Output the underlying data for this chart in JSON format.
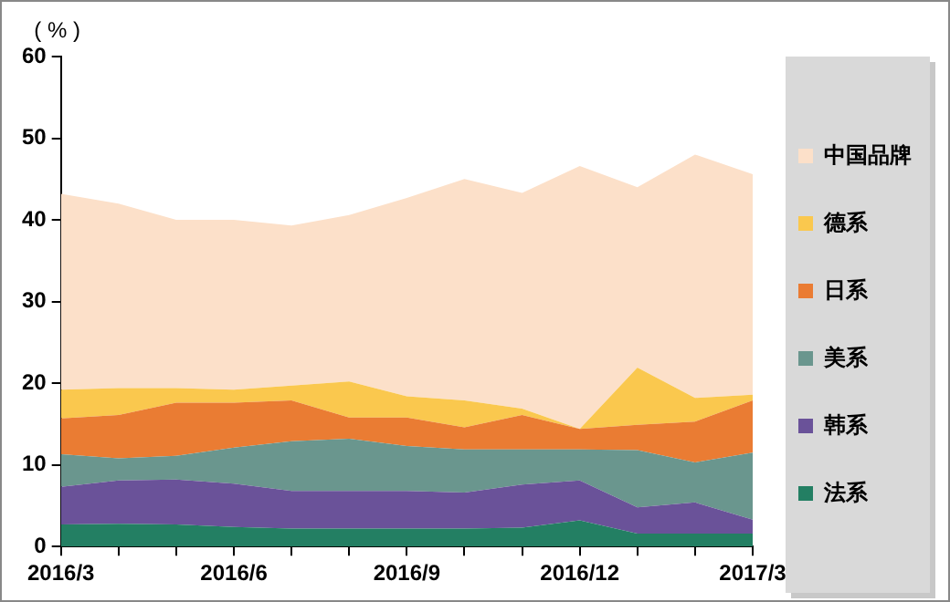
{
  "chart_data": {
    "type": "area",
    "stacked": true,
    "ylabel": "( % )",
    "categories": [
      "2016/3",
      null,
      null,
      "2016/6",
      null,
      null,
      "2016/9",
      null,
      null,
      "2016/12",
      null,
      null,
      "2017/3"
    ],
    "series": [
      {
        "name": "法系",
        "color": "#237f63",
        "values": [
          2.7,
          2.8,
          2.7,
          2.4,
          2.2,
          2.2,
          2.2,
          2.2,
          2.3,
          3.2,
          1.6,
          1.6,
          1.6
        ]
      },
      {
        "name": "韩系",
        "color": "#6a5299",
        "values": [
          4.6,
          5.3,
          5.5,
          5.3,
          4.6,
          4.6,
          4.6,
          4.4,
          5.3,
          4.9,
          3.2,
          3.8,
          1.7
        ]
      },
      {
        "name": "美系",
        "color": "#6a968e",
        "values": [
          4.0,
          2.7,
          2.9,
          4.4,
          6.1,
          6.4,
          5.5,
          5.3,
          4.3,
          3.8,
          7.0,
          4.9,
          8.2
        ]
      },
      {
        "name": "日系",
        "color": "#ea7c33",
        "values": [
          4.4,
          5.3,
          6.5,
          5.5,
          5.0,
          2.6,
          3.5,
          2.7,
          4.2,
          2.5,
          3.1,
          5.0,
          6.4
        ]
      },
      {
        "name": "德系",
        "color": "#fac84e",
        "values": [
          3.5,
          3.3,
          1.8,
          1.6,
          1.8,
          4.4,
          2.6,
          3.3,
          0.8,
          0,
          7.0,
          2.9,
          0.7
        ]
      },
      {
        "name": "中国品牌",
        "color": "#fce0c9",
        "values": [
          24.0,
          22.6,
          20.6,
          20.8,
          19.6,
          20.4,
          24.3,
          27.1,
          26.4,
          32.2,
          22.1,
          29.8,
          27.0
        ]
      }
    ],
    "ylim": [
      0,
      60
    ],
    "yticks": [
      0,
      10,
      20,
      30,
      40,
      50,
      60
    ],
    "grid": false,
    "legend": "right"
  }
}
